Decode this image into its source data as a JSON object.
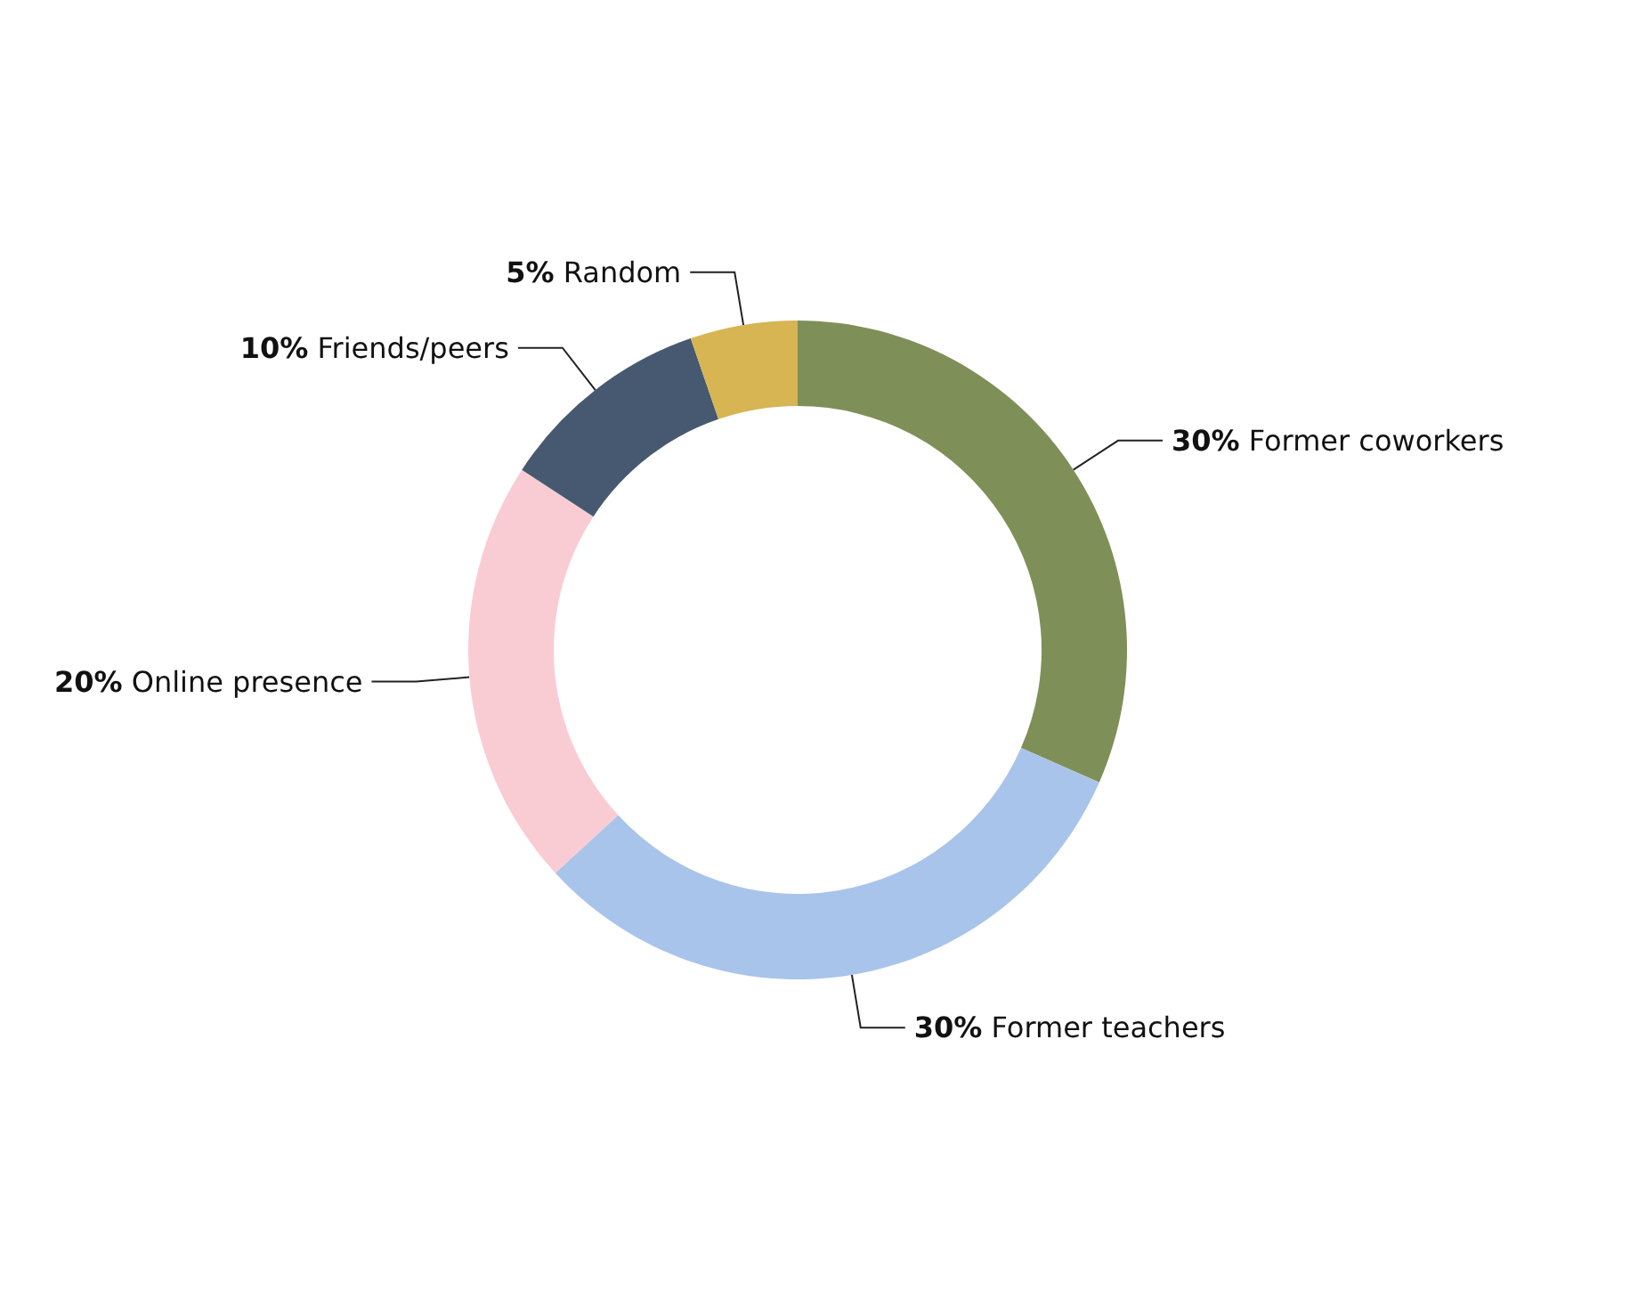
{
  "chart_data": {
    "type": "donut",
    "categories": [
      "Former coworkers",
      "Former teachers",
      "Online presence",
      "Friends/peers",
      "Random"
    ],
    "values": [
      30,
      30,
      20,
      10,
      5
    ],
    "value_labels": [
      "30%",
      "30%",
      "20%",
      "10%",
      "5%"
    ],
    "colors": [
      "#7f8f58",
      "#a9c4ea",
      "#f9ccd3",
      "#475970",
      "#d6b552"
    ],
    "legend": false
  }
}
